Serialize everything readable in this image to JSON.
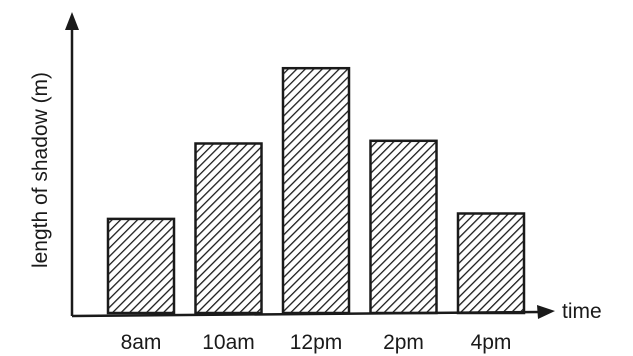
{
  "chart_data": {
    "type": "bar",
    "title": "",
    "xlabel": "time",
    "ylabel": "length of shadow (m)",
    "categories": [
      "8am",
      "10am",
      "12pm",
      "2pm",
      "4pm"
    ],
    "values": [
      3.5,
      6.3,
      9.1,
      6.4,
      3.7
    ],
    "ylim": [
      0,
      10
    ],
    "grid": false,
    "legend": "none",
    "y_ticks_shown": false,
    "bar_fill": "hatched",
    "colors": {
      "ink": "#1a1a1a",
      "background": "#ffffff"
    }
  }
}
